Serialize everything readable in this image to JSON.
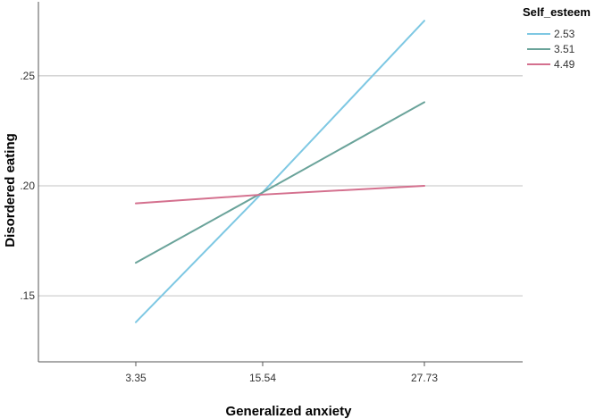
{
  "chart_data": {
    "type": "line",
    "xlabel": "Generalized anxiety",
    "ylabel": "Disordered eating",
    "categories": [
      "3.35",
      "15.54",
      "27.73"
    ],
    "yticks": [
      ".15",
      ".20",
      ".25"
    ],
    "ylim": [
      0.12,
      0.282
    ],
    "grid": "horizontal",
    "legend": {
      "title": "Self_esteem",
      "placement": "top-right"
    },
    "series": [
      {
        "name": "2.53",
        "color": "#7ec8e3",
        "values": [
          0.138,
          0.197,
          0.275
        ]
      },
      {
        "name": "3.51",
        "color": "#6aa39a",
        "values": [
          0.165,
          0.197,
          0.238
        ]
      },
      {
        "name": "4.49",
        "color": "#d4708e",
        "values": [
          0.192,
          0.196,
          0.2
        ]
      }
    ]
  }
}
